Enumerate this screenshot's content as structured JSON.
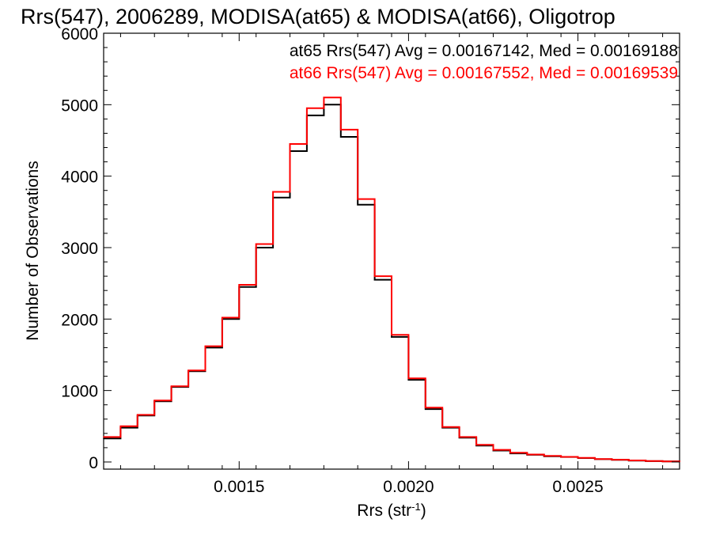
{
  "chart_data": {
    "type": "line",
    "title": "Rrs(547), 2006289, MODISA(at65) & MODISA(at66), Oligotrop",
    "xlabel": "Rrs (str",
    "xlabel_sup": "-1",
    "xlabel_suffix": ")",
    "ylabel": "Number of Observations",
    "xlim": [
      0.0011,
      0.0028
    ],
    "ylim": [
      -100,
      6000
    ],
    "x_ticks": [
      0.0015,
      0.002,
      0.0025
    ],
    "x_tick_labels": [
      "0.0015",
      "0.0020",
      "0.0025"
    ],
    "y_ticks": [
      0,
      1000,
      2000,
      3000,
      4000,
      5000,
      6000
    ],
    "y_tick_labels": [
      "0",
      "1000",
      "2000",
      "3000",
      "4000",
      "5000",
      "6000"
    ],
    "grid": false,
    "legend_position": "top-right",
    "series": [
      {
        "name": "at65",
        "color": "#000000",
        "stats_label": "at65 Rrs(547) Avg = 0.00167142, Med = 0.00169188",
        "x": [
          0.0011,
          0.00115,
          0.0012,
          0.00125,
          0.0013,
          0.00135,
          0.0014,
          0.00145,
          0.0015,
          0.00155,
          0.0016,
          0.00165,
          0.0017,
          0.00175,
          0.0018,
          0.00185,
          0.0019,
          0.00195,
          0.002,
          0.00205,
          0.0021,
          0.00215,
          0.0022,
          0.00225,
          0.0023,
          0.00235,
          0.0024,
          0.00245,
          0.0025,
          0.00255,
          0.0026,
          0.00265,
          0.0027,
          0.00275,
          0.0028
        ],
        "y": [
          330,
          480,
          650,
          850,
          1050,
          1270,
          1600,
          2000,
          2450,
          3000,
          3700,
          4350,
          4850,
          5000,
          4550,
          3600,
          2550,
          1750,
          1150,
          740,
          480,
          340,
          230,
          160,
          120,
          100,
          80,
          70,
          55,
          40,
          30,
          20,
          12,
          8,
          5
        ]
      },
      {
        "name": "at66",
        "color": "#ff0000",
        "stats_label": "at66 Rrs(547) Avg = 0.00167552, Med = 0.00169539",
        "x": [
          0.0011,
          0.00115,
          0.0012,
          0.00125,
          0.0013,
          0.00135,
          0.0014,
          0.00145,
          0.0015,
          0.00155,
          0.0016,
          0.00165,
          0.0017,
          0.00175,
          0.0018,
          0.00185,
          0.0019,
          0.00195,
          0.002,
          0.00205,
          0.0021,
          0.00215,
          0.0022,
          0.00225,
          0.0023,
          0.00235,
          0.0024,
          0.00245,
          0.0025,
          0.00255,
          0.0026,
          0.00265,
          0.0027,
          0.00275,
          0.0028
        ],
        "y": [
          350,
          500,
          660,
          860,
          1060,
          1280,
          1620,
          2020,
          2480,
          3050,
          3780,
          4450,
          4950,
          5100,
          4650,
          3680,
          2600,
          1780,
          1170,
          760,
          490,
          350,
          240,
          170,
          130,
          105,
          85,
          72,
          58,
          42,
          32,
          22,
          14,
          9,
          6
        ]
      }
    ]
  }
}
